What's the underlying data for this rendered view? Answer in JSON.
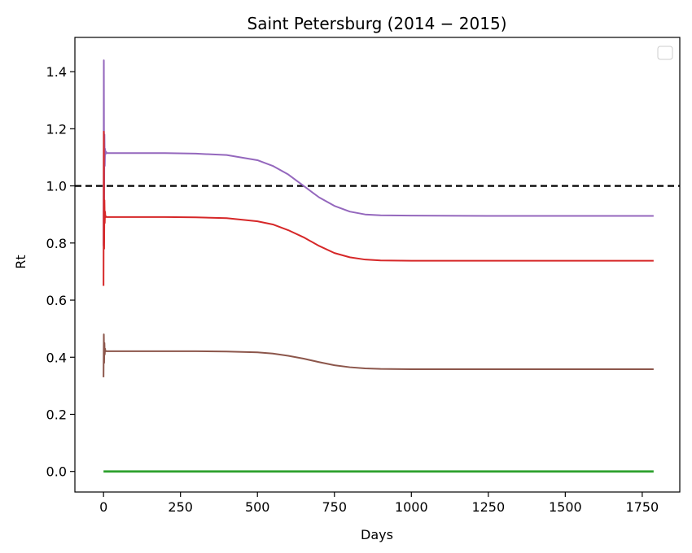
{
  "chart_data": {
    "type": "line",
    "title": "Saint Petersburg (2014 − 2015)",
    "xlabel": "Days",
    "ylabel": "Rt",
    "xlim": [
      -93,
      1872
    ],
    "ylim": [
      -0.072,
      1.52
    ],
    "xticks": [
      0,
      250,
      500,
      750,
      1000,
      1250,
      1500,
      1750
    ],
    "yticks": [
      0.0,
      0.2,
      0.4,
      0.6,
      0.8,
      1.0,
      1.2,
      1.4
    ],
    "xtick_labels": [
      "0",
      "250",
      "500",
      "750",
      "1000",
      "1250",
      "1500",
      "1750"
    ],
    "ytick_labels": [
      "0.0",
      "0.2",
      "0.4",
      "0.6",
      "0.8",
      "1.0",
      "1.2",
      "1.4"
    ],
    "grid": false,
    "legend": "top-right",
    "reference_line": {
      "y": 1.0,
      "color": "#000000",
      "style": "dashed"
    },
    "series": [
      {
        "color": "#9467bd",
        "x": [
          0,
          1,
          2,
          3,
          4,
          5,
          6,
          8,
          10,
          20,
          100,
          200,
          300,
          400,
          500,
          550,
          600,
          650,
          700,
          750,
          800,
          850,
          900,
          1000,
          1250,
          1500,
          1787
        ],
        "values": [
          0.79,
          1.44,
          0.95,
          1.18,
          1.07,
          1.13,
          1.11,
          1.12,
          1.115,
          1.115,
          1.115,
          1.115,
          1.113,
          1.108,
          1.09,
          1.07,
          1.04,
          1.0,
          0.96,
          0.93,
          0.91,
          0.9,
          0.897,
          0.896,
          0.895,
          0.895,
          0.895
        ]
      },
      {
        "color": "#d62728",
        "x": [
          0,
          1,
          2,
          3,
          4,
          5,
          6,
          8,
          10,
          20,
          100,
          200,
          300,
          400,
          500,
          550,
          600,
          650,
          700,
          750,
          800,
          850,
          900,
          1000,
          1250,
          1500,
          1787
        ],
        "values": [
          0.65,
          1.19,
          0.78,
          0.95,
          0.87,
          0.91,
          0.89,
          0.893,
          0.891,
          0.891,
          0.891,
          0.891,
          0.89,
          0.887,
          0.876,
          0.865,
          0.845,
          0.82,
          0.79,
          0.765,
          0.75,
          0.742,
          0.739,
          0.738,
          0.738,
          0.738,
          0.738
        ]
      },
      {
        "color": "#8c564b",
        "x": [
          0,
          1,
          2,
          3,
          4,
          5,
          6,
          8,
          10,
          20,
          100,
          200,
          300,
          400,
          500,
          550,
          600,
          650,
          700,
          750,
          800,
          850,
          900,
          1000,
          1250,
          1500,
          1787
        ],
        "values": [
          0.33,
          0.48,
          0.38,
          0.45,
          0.41,
          0.43,
          0.42,
          0.422,
          0.421,
          0.421,
          0.421,
          0.421,
          0.421,
          0.42,
          0.417,
          0.413,
          0.405,
          0.395,
          0.383,
          0.372,
          0.365,
          0.361,
          0.359,
          0.358,
          0.358,
          0.358,
          0.358
        ]
      },
      {
        "color": "#2ca02c",
        "x": [
          0,
          1787
        ],
        "values": [
          0.0,
          0.0
        ]
      }
    ]
  }
}
